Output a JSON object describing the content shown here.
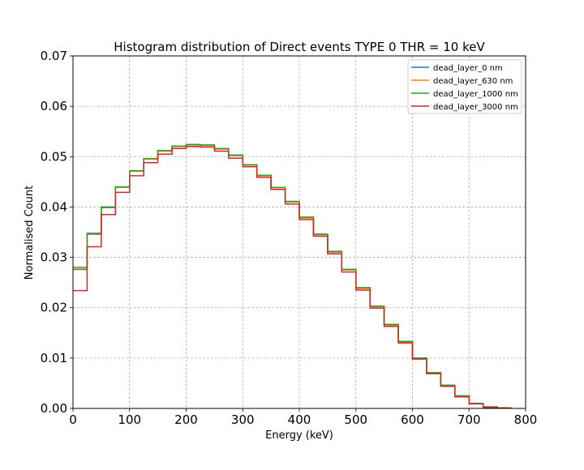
{
  "chart_data": {
    "type": "line",
    "drawstyle": "steps-post",
    "title": "Histogram distribution of Direct events TYPE 0 THR = 10 keV",
    "xlabel": "Energy (keV)",
    "ylabel": "Normalised Count",
    "xlim": [
      0,
      800
    ],
    "ylim": [
      0,
      0.07
    ],
    "xticks": [
      0,
      100,
      200,
      300,
      400,
      500,
      600,
      700,
      800
    ],
    "xtick_labels": [
      "0",
      "100",
      "200",
      "300",
      "400",
      "500",
      "600",
      "700",
      "800"
    ],
    "yticks": [
      0,
      0.01,
      0.02,
      0.03,
      0.04,
      0.05,
      0.06,
      0.07
    ],
    "ytick_labels": [
      "0.00",
      "0.01",
      "0.02",
      "0.03",
      "0.04",
      "0.05",
      "0.06",
      "0.07"
    ],
    "grid": true,
    "legend_position": "top-right",
    "bin_edges": [
      0,
      25,
      50,
      75,
      100,
      125,
      150,
      175,
      200,
      225,
      250,
      275,
      300,
      325,
      350,
      375,
      400,
      425,
      450,
      475,
      500,
      525,
      550,
      575,
      600,
      625,
      650,
      675,
      700,
      725,
      750,
      775
    ],
    "series": [
      {
        "name": "dead_layer_0 nm",
        "color": "#1f77b4",
        "values": [
          0.028,
          0.0348,
          0.04,
          0.044,
          0.0472,
          0.0496,
          0.0512,
          0.0521,
          0.0524,
          0.0523,
          0.0516,
          0.0503,
          0.0484,
          0.0463,
          0.0439,
          0.0411,
          0.0379,
          0.0346,
          0.0311,
          0.0276,
          0.0239,
          0.0203,
          0.0166,
          0.0133,
          0.01,
          0.0071,
          0.0046,
          0.0025,
          0.001,
          0.0003,
          0.0001
        ]
      },
      {
        "name": "dead_layer_630 nm",
        "color": "#ff7f0e",
        "values": [
          0.0279,
          0.0347,
          0.0399,
          0.0439,
          0.0471,
          0.0495,
          0.0511,
          0.052,
          0.0523,
          0.0522,
          0.0515,
          0.0502,
          0.0483,
          0.0462,
          0.0438,
          0.041,
          0.0378,
          0.0345,
          0.031,
          0.0275,
          0.0238,
          0.0202,
          0.0165,
          0.0132,
          0.0099,
          0.007,
          0.0046,
          0.0024,
          0.001,
          0.0003,
          0.0001
        ]
      },
      {
        "name": "dead_layer_1000 nm",
        "color": "#2ca02c",
        "values": [
          0.0276,
          0.0346,
          0.0399,
          0.044,
          0.0472,
          0.0496,
          0.0512,
          0.0521,
          0.0524,
          0.0523,
          0.0516,
          0.0503,
          0.0484,
          0.0463,
          0.0439,
          0.0411,
          0.038,
          0.0346,
          0.0312,
          0.0276,
          0.024,
          0.0203,
          0.0167,
          0.0133,
          0.01,
          0.0071,
          0.0046,
          0.0025,
          0.001,
          0.0003,
          0.0001
        ]
      },
      {
        "name": "dead_layer_3000 nm",
        "color": "#d62728",
        "values": [
          0.0234,
          0.0321,
          0.0385,
          0.0429,
          0.0462,
          0.0488,
          0.0505,
          0.0516,
          0.052,
          0.0519,
          0.0511,
          0.0497,
          0.048,
          0.0459,
          0.0435,
          0.0406,
          0.0375,
          0.0342,
          0.0307,
          0.0271,
          0.0235,
          0.0199,
          0.0163,
          0.013,
          0.0098,
          0.0069,
          0.0044,
          0.0023,
          0.0009,
          0.0002,
          0.0001
        ]
      }
    ]
  }
}
